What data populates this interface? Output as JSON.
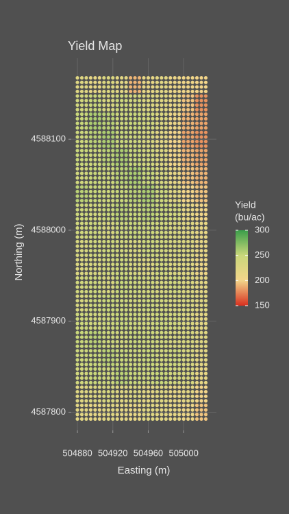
{
  "chart_data": {
    "type": "yield-grid",
    "title": "Yield Map",
    "x_label": "Easting (m)",
    "y_label": "Northing (m)",
    "x": [
      504885,
      504900,
      504915,
      504930,
      504945,
      504960,
      504975,
      504990,
      505005,
      505020
    ],
    "y": [
      4588160,
      4588140,
      4588120,
      4588100,
      4588080,
      4588060,
      4588040,
      4588020,
      4588000,
      4587980,
      4587960,
      4587940,
      4587920,
      4587900,
      4587880,
      4587860,
      4587840,
      4587820,
      4587800
    ],
    "values": [
      [
        225,
        215,
        230,
        220,
        190,
        215,
        220,
        210,
        205,
        200
      ],
      [
        240,
        250,
        235,
        245,
        240,
        230,
        225,
        215,
        195,
        180
      ],
      [
        250,
        260,
        255,
        245,
        250,
        240,
        230,
        210,
        190,
        185
      ],
      [
        245,
        255,
        260,
        250,
        245,
        235,
        220,
        200,
        185,
        180
      ],
      [
        250,
        245,
        255,
        260,
        250,
        240,
        230,
        205,
        190,
        185
      ],
      [
        240,
        250,
        245,
        255,
        260,
        250,
        235,
        215,
        195,
        190
      ],
      [
        255,
        250,
        245,
        250,
        255,
        260,
        245,
        225,
        200,
        195
      ],
      [
        245,
        240,
        250,
        255,
        250,
        255,
        250,
        240,
        215,
        205
      ],
      [
        240,
        245,
        235,
        245,
        250,
        245,
        240,
        235,
        225,
        215
      ],
      [
        235,
        240,
        245,
        240,
        235,
        245,
        240,
        235,
        230,
        215
      ],
      [
        230,
        235,
        240,
        245,
        235,
        230,
        240,
        230,
        225,
        210
      ],
      [
        240,
        245,
        235,
        250,
        245,
        240,
        235,
        240,
        230,
        220
      ],
      [
        235,
        245,
        250,
        245,
        240,
        245,
        240,
        235,
        235,
        225
      ],
      [
        245,
        240,
        245,
        250,
        245,
        240,
        245,
        240,
        230,
        220
      ],
      [
        250,
        255,
        245,
        240,
        250,
        245,
        240,
        235,
        235,
        225
      ],
      [
        245,
        250,
        255,
        250,
        245,
        250,
        240,
        245,
        235,
        220
      ],
      [
        240,
        250,
        245,
        255,
        250,
        245,
        250,
        240,
        235,
        215
      ],
      [
        225,
        230,
        235,
        225,
        230,
        220,
        225,
        215,
        220,
        200
      ],
      [
        220,
        215,
        225,
        220,
        215,
        225,
        220,
        215,
        210,
        195
      ]
    ],
    "xlim": [
      504873,
      505037
    ],
    "ylim": [
      4587780,
      4588189
    ],
    "xticks": [
      504880,
      504920,
      504960,
      505000
    ],
    "yticks": [
      4587800,
      4587900,
      4588000,
      4588100
    ],
    "grid": true,
    "colorbar": {
      "title": [
        "Yield",
        "(bu/ac)"
      ],
      "lim": [
        150,
        300
      ],
      "ticks": [
        150,
        200,
        250,
        300
      ],
      "colors": [
        "#d7301f",
        "#f3d58a",
        "#c9d77a",
        "#3a9e4a"
      ]
    }
  }
}
